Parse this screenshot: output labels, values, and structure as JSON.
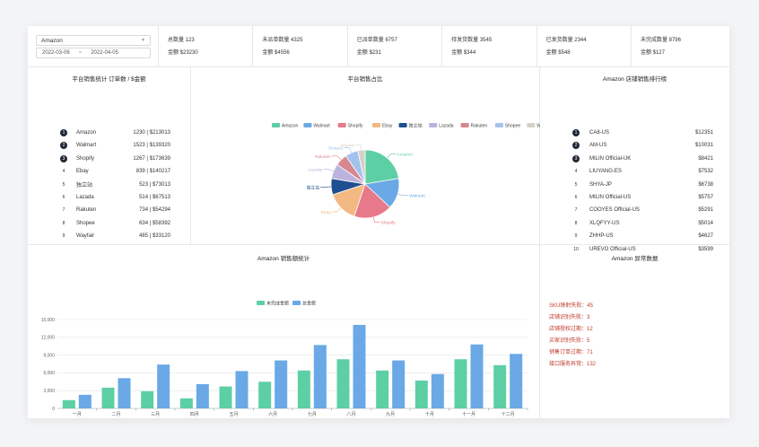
{
  "filter": {
    "store": "Amazon",
    "start_date": "2022-03-06",
    "separator": "~",
    "end_date": "2022-04-05"
  },
  "stats": [
    {
      "line1": "总数量 123",
      "line2": "金额 $23230"
    },
    {
      "line1": "未派单数量 4325",
      "line2": "金额 $4556"
    },
    {
      "line1": "已派单数量 6757",
      "line2": "金额 $231"
    },
    {
      "line1": "待发货数量 3545",
      "line2": "金额 $344"
    },
    {
      "line1": "已发货数量 2344",
      "line2": "金额 $548"
    },
    {
      "line1": "未完成数量 8796",
      "line2": "金额 $127"
    }
  ],
  "platform_rank": {
    "title": "平台销售统计 订单数 / $金额",
    "rows": [
      {
        "no": "1",
        "name": "Amazon",
        "value": "1230 | $213013"
      },
      {
        "no": "2",
        "name": "Walmart",
        "value": "1523 | $139320"
      },
      {
        "no": "3",
        "name": "Shopify",
        "value": "1267 | $173639"
      },
      {
        "no": "4",
        "name": "Ebay",
        "value": "839 | $140217"
      },
      {
        "no": "5",
        "name": "独立站",
        "value": "523 | $73013"
      },
      {
        "no": "6",
        "name": "Lazada",
        "value": "514 | $67513"
      },
      {
        "no": "7",
        "name": "Rakuten",
        "value": "734 | $54294"
      },
      {
        "no": "8",
        "name": "Shopee",
        "value": "634 | $58392"
      },
      {
        "no": "9",
        "name": "Wayfair",
        "value": "485 | $33120"
      }
    ]
  },
  "store_rank": {
    "title": "Amazon 店铺销售排行榜",
    "rows": [
      {
        "no": "1",
        "name": "CA8-US",
        "value": "$12351"
      },
      {
        "no": "2",
        "name": "AM-US",
        "value": "$10031"
      },
      {
        "no": "3",
        "name": "MILIN Official-UK",
        "value": "$8421"
      },
      {
        "no": "4",
        "name": "LIUYANG-ES",
        "value": "$7532"
      },
      {
        "no": "5",
        "name": "SHYA-JP",
        "value": "$6738"
      },
      {
        "no": "6",
        "name": "MILIN Official-US",
        "value": "$5757"
      },
      {
        "no": "7",
        "name": "COOYES Official-US",
        "value": "$5291"
      },
      {
        "no": "8",
        "name": "XLQFYY-US",
        "value": "$5014"
      },
      {
        "no": "9",
        "name": "ZHHP-US",
        "value": "$4627"
      },
      {
        "no": "10",
        "name": "UREVO Official-US",
        "value": "$3599"
      }
    ]
  },
  "pie_title": "平台销售占比",
  "sales_title": "Amazon 销售额统计",
  "anomaly": {
    "title": "Amazon 异常数据",
    "items": [
      "SKU映射失败：45",
      "店铺识别失败：3",
      "店铺授权过期：12",
      "买家识别失败：5",
      "销售订单过期：71",
      "接口服务异常：132"
    ]
  },
  "chart_data": [
    {
      "type": "pie",
      "title": "平台销售占比",
      "categories": [
        "Amazon",
        "Walmart",
        "Shopify",
        "Ebay",
        "独立站",
        "Lazada",
        "Rakuten",
        "Shopee",
        "Wayfair"
      ],
      "values": [
        213013,
        139320,
        173639,
        140217,
        73013,
        67513,
        54294,
        58392,
        33120
      ],
      "colors": [
        "#5dcfa5",
        "#6aa9e6",
        "#e8798a",
        "#f3b983",
        "#1e4f8f",
        "#bbb3de",
        "#d7878f",
        "#a3c2ee",
        "#d6d1c7"
      ],
      "legend": "top"
    },
    {
      "type": "bar",
      "title": "Amazon 销售额统计",
      "categories": [
        "一月",
        "二月",
        "三月",
        "四月",
        "五月",
        "六月",
        "七月",
        "八月",
        "九月",
        "十月",
        "十一月",
        "十二月"
      ],
      "series": [
        {
          "name": "未完成金额",
          "color": "#5dcfa5",
          "values": [
            1400,
            3500,
            2900,
            1700,
            3700,
            4500,
            6400,
            8300,
            6400,
            4700,
            8300,
            7300
          ]
        },
        {
          "name": "总金额",
          "color": "#6aa9e6",
          "values": [
            2300,
            5100,
            7400,
            4100,
            6300,
            8100,
            10700,
            14100,
            8100,
            5800,
            10800,
            9200
          ]
        }
      ],
      "yticks": [
        "0",
        "3,000",
        "6,000",
        "9,000",
        "12,000",
        "15,000"
      ],
      "ylim": [
        0,
        15000
      ],
      "legend": "top",
      "grid": true
    }
  ]
}
